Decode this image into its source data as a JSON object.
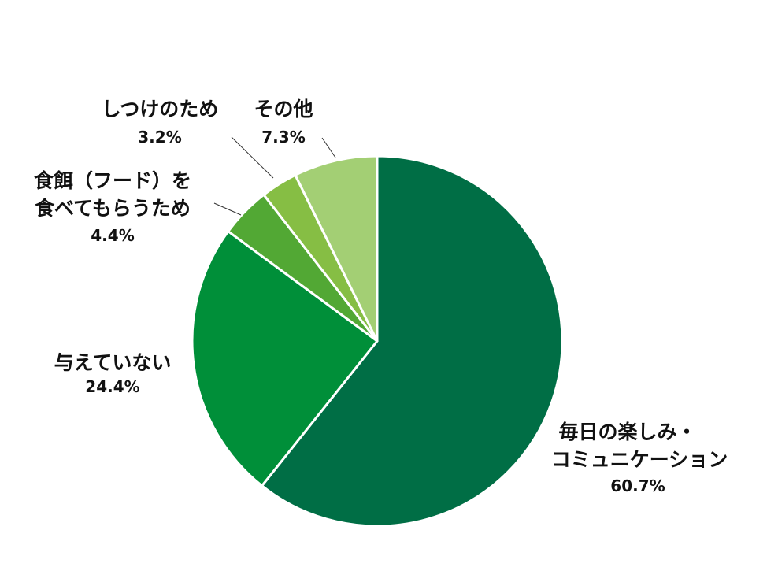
{
  "chart_data": {
    "type": "pie",
    "slices": [
      {
        "label_lines": [
          "毎日の楽しみ・",
          "コミュニケーション"
        ],
        "percent_label": "60.7%",
        "value": 60.7,
        "color": "#006e45"
      },
      {
        "label_lines": [
          "与えていない"
        ],
        "percent_label": "24.4%",
        "value": 24.4,
        "color": "#008f39"
      },
      {
        "label_lines": [
          "食餌（フード）を",
          "食べてもらうため"
        ],
        "percent_label": "4.4%",
        "value": 4.4,
        "color": "#52a834"
      },
      {
        "label_lines": [
          "しつけのため"
        ],
        "percent_label": "3.2%",
        "value": 3.2,
        "color": "#86be44"
      },
      {
        "label_lines": [
          "その他"
        ],
        "percent_label": "7.3%",
        "value": 7.3,
        "color": "#a3cf74"
      }
    ],
    "start": "12 o'clock",
    "direction": "clockwise",
    "legend": "none"
  }
}
